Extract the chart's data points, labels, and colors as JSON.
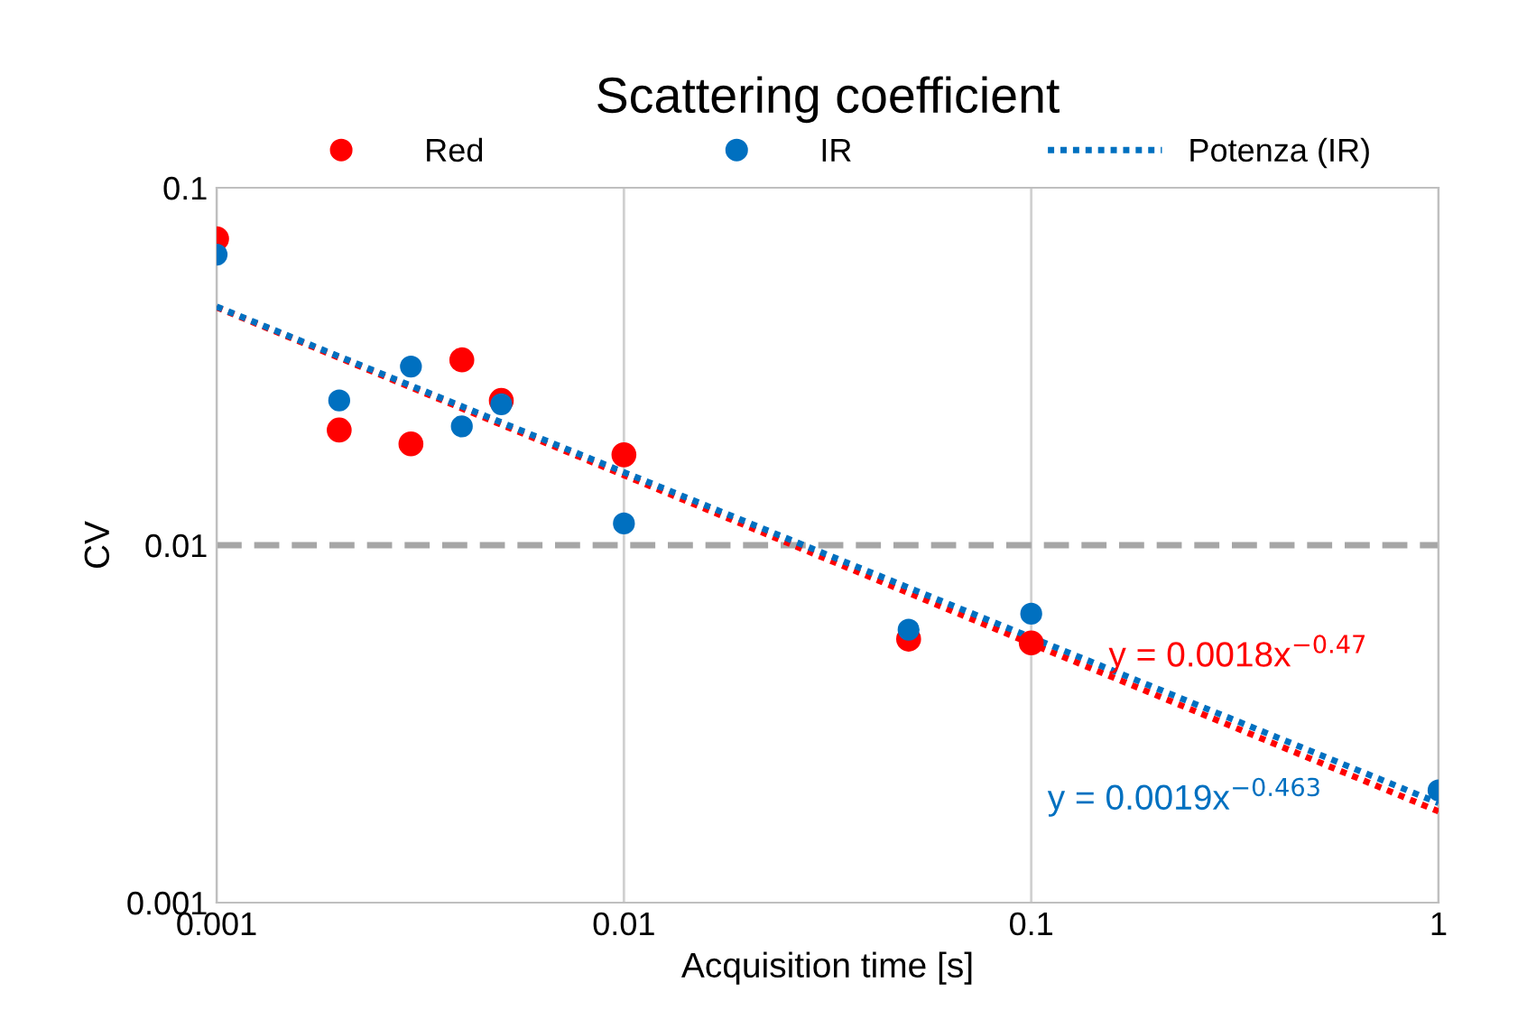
{
  "chart_data": {
    "type": "scatter",
    "title": "Scattering coefficient",
    "xlabel": "Acquisition time [s]",
    "ylabel": "CV",
    "log": "xy",
    "xlim": [
      0.001,
      1
    ],
    "ylim": [
      0.001,
      0.1
    ],
    "xticks": [
      0.001,
      0.01,
      0.1,
      1
    ],
    "yticks": [
      0.001,
      0.01,
      0.1
    ],
    "grid": "x",
    "legend": "top",
    "marker": "circle",
    "x": [
      0.001,
      0.002,
      0.003,
      0.004,
      0.005,
      0.01,
      0.05,
      0.1,
      1
    ],
    "series": [
      {
        "name": "Red",
        "color": "#ff0000",
        "values": [
          0.072,
          0.021,
          0.0192,
          0.033,
          0.0254,
          0.0179,
          0.00546,
          0.00533,
          null
        ]
      },
      {
        "name": "IR",
        "color": "#0070c0",
        "values": [
          0.065,
          0.0254,
          0.0316,
          0.0215,
          0.0248,
          0.0115,
          0.0058,
          0.00643,
          0.00206
        ]
      },
      {
        "type": "line",
        "color": "#ff0000",
        "line_style": "dotted",
        "marker": "none",
        "x": [
          0.001,
          0.01,
          0.1,
          1
        ],
        "values": [
          0.0463,
          0.0157,
          0.0053,
          0.0018
        ]
      },
      {
        "type": "line",
        "name": "Potenza (IR)",
        "color": "#0070c0",
        "line_style": "dotted",
        "marker": "none",
        "x": [
          0.001,
          0.01,
          0.1,
          1
        ],
        "values": [
          0.0465,
          0.016,
          0.00552,
          0.0019
        ]
      }
    ],
    "ref_lines": [
      {
        "axis": "y",
        "value": 0.01,
        "color": "#a6a6a6",
        "line_style": "dashed"
      }
    ],
    "annotations": [
      "y = 0.0018x$^{−0.47}$",
      "y = 0.0019x$^{−0.463}$"
    ]
  }
}
